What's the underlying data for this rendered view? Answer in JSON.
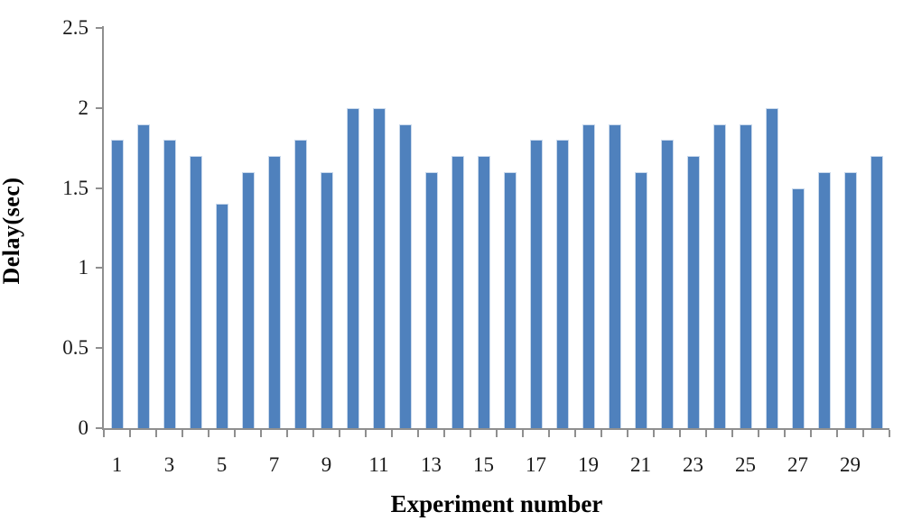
{
  "chart_data": {
    "type": "bar",
    "title": "",
    "xlabel": "Experiment number",
    "ylabel": "Delay(sec)",
    "categories": [
      1,
      2,
      3,
      4,
      5,
      6,
      7,
      8,
      9,
      10,
      11,
      12,
      13,
      14,
      15,
      16,
      17,
      18,
      19,
      20,
      21,
      22,
      23,
      24,
      25,
      26,
      27,
      28,
      29,
      30
    ],
    "values": [
      1.8,
      1.9,
      1.8,
      1.7,
      1.4,
      1.6,
      1.7,
      1.8,
      1.6,
      2.0,
      2.0,
      1.9,
      1.6,
      1.7,
      1.7,
      1.6,
      1.8,
      1.8,
      1.9,
      1.9,
      1.6,
      1.8,
      1.7,
      1.9,
      1.9,
      2.0,
      1.5,
      1.6,
      1.6,
      1.7
    ],
    "ylim": [
      0,
      2.5
    ],
    "yticks": [
      "0",
      "0.5",
      "1",
      "1.5",
      "2",
      "2.5"
    ],
    "xtick_labels": [
      "1",
      "3",
      "5",
      "7",
      "9",
      "11",
      "13",
      "15",
      "17",
      "19",
      "21",
      "23",
      "25",
      "27",
      "29"
    ],
    "grid": false,
    "legend": false,
    "bar_color": "#4F81BD",
    "bar_border_color": "#c9d9ec",
    "axis_color": "#8f8f8f",
    "text_color": "#000000"
  }
}
